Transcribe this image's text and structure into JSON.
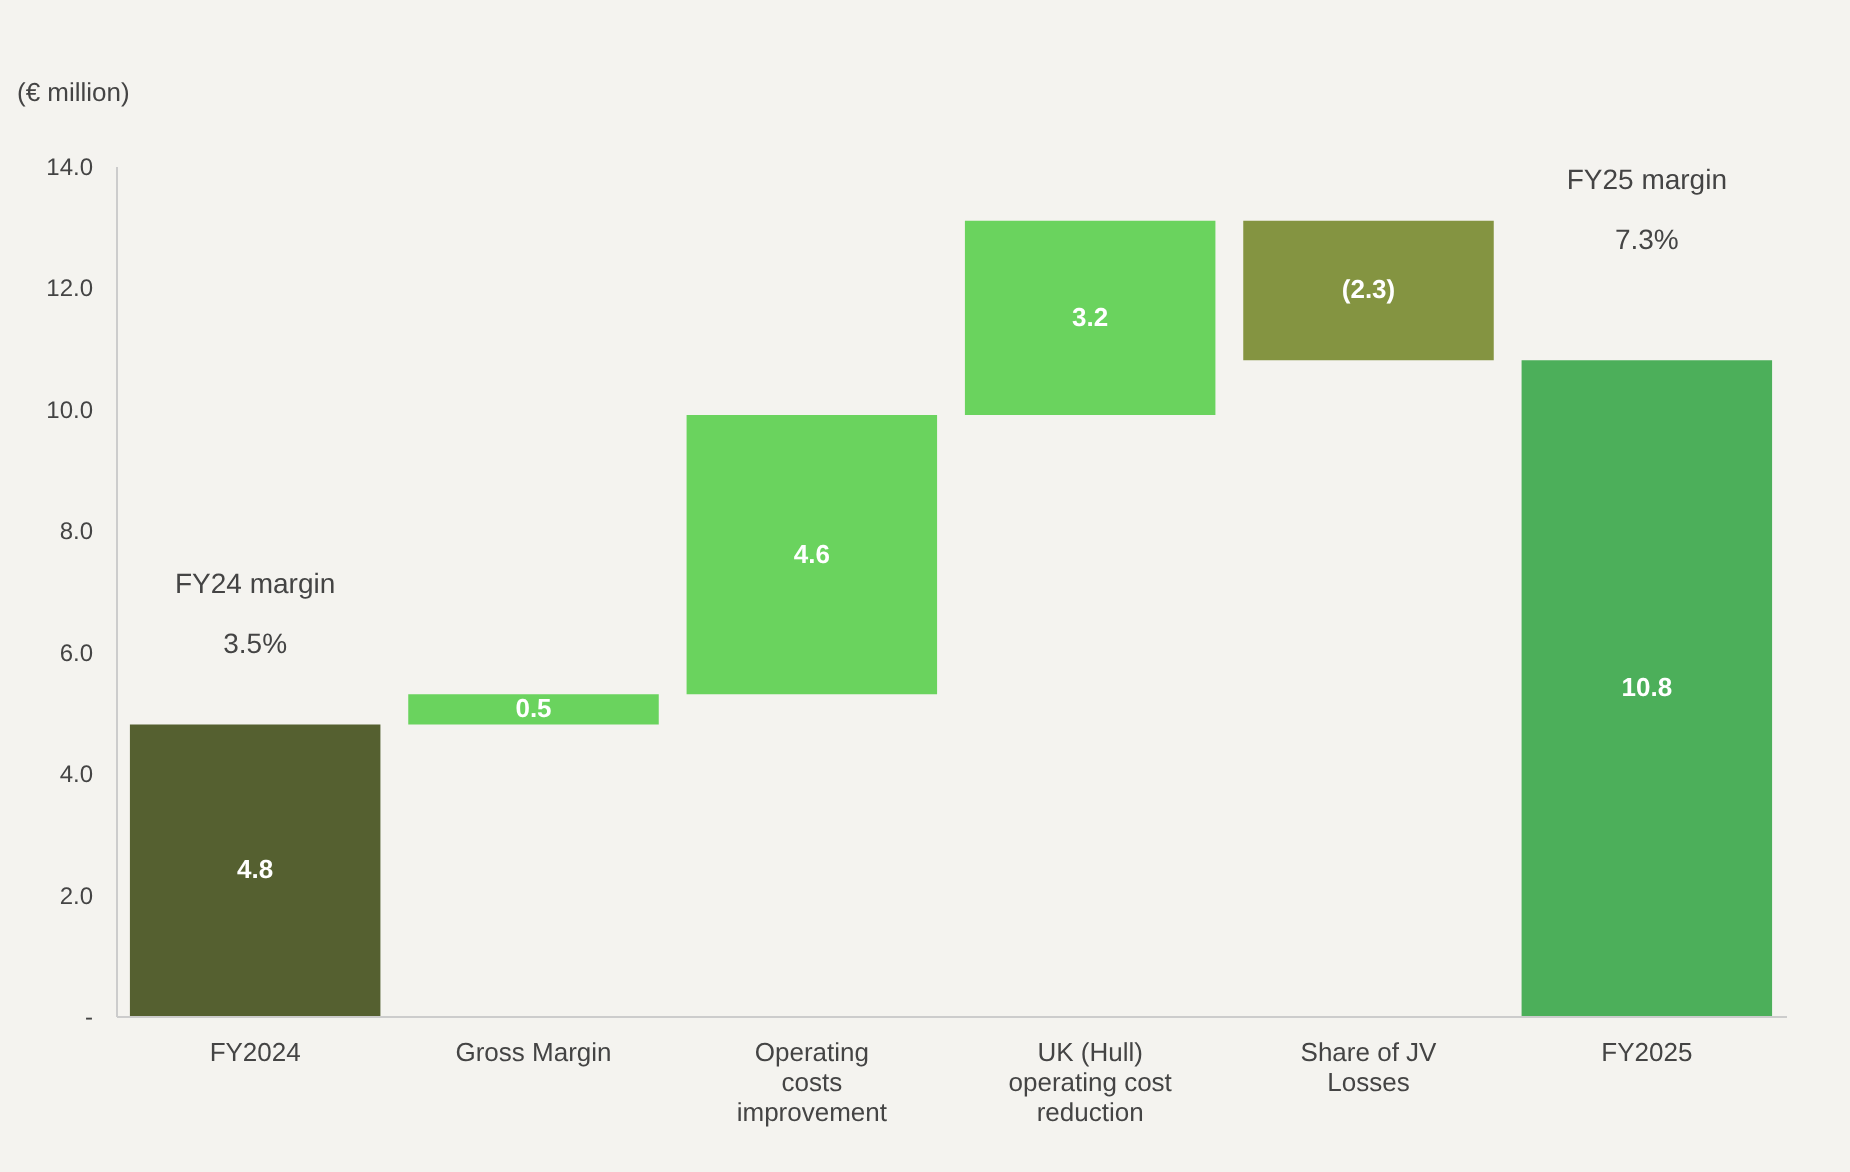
{
  "chart_data": {
    "type": "bar",
    "ylabel": "(€ million)",
    "categories": [
      "FY2024",
      "Gross Margin",
      "Operating costs improvement",
      "UK (Hull) operating cost reduction",
      "Share of JV Losses",
      "FY2025"
    ],
    "values": [
      4.8,
      0.5,
      4.6,
      3.2,
      -2.3,
      10.8
    ],
    "base": [
      0,
      4.8,
      5.3,
      9.9,
      13.1,
      0
    ],
    "colors": [
      "#556030",
      "#6ad35e",
      "#6ad35e",
      "#6ad35e",
      "#849441",
      "#4caf5a"
    ],
    "value_labels": [
      "4.8",
      "0.5",
      "4.6",
      "3.2",
      "(2.3)",
      "10.8"
    ],
    "ylim": [
      0,
      14
    ],
    "yticks": [
      {
        "value": 0,
        "label": "-"
      },
      {
        "value": 2,
        "label": "2.0"
      },
      {
        "value": 4,
        "label": "4.0"
      },
      {
        "value": 6,
        "label": "6.0"
      },
      {
        "value": 8,
        "label": "8.0"
      },
      {
        "value": 10,
        "label": "10.0"
      },
      {
        "value": 12,
        "label": "12.0"
      },
      {
        "value": 14,
        "label": "14.0"
      }
    ],
    "annotations": [
      "FY24 margin",
      "3.5%",
      "FY25 margin",
      "7.3%"
    ],
    "grid": false
  }
}
